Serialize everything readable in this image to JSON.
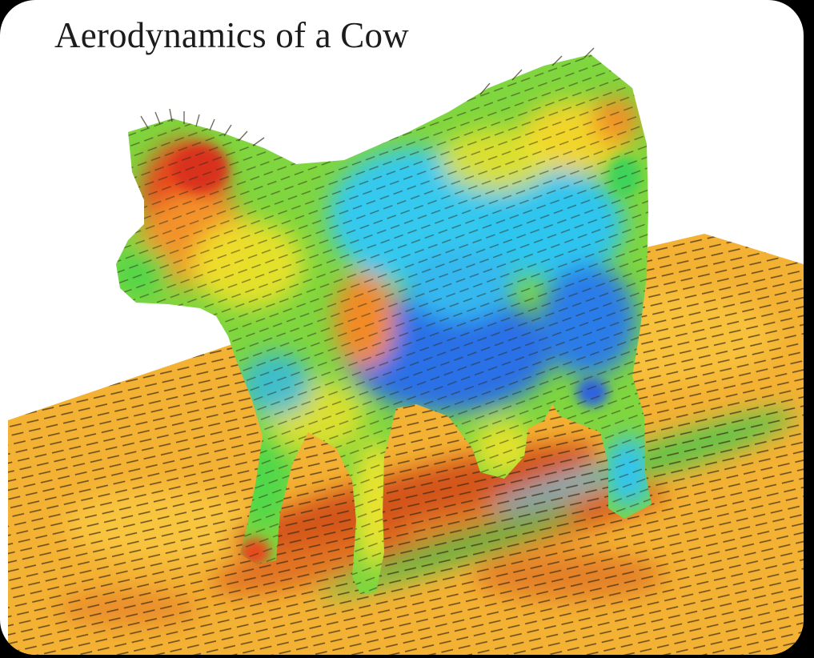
{
  "title": "Aerodynamics of a Cow",
  "colors": {
    "background": "#000000",
    "card": "#ffffff",
    "title_text": "#1c1c1c",
    "floor_base": "#f4b234",
    "floor_red": "#d9561c",
    "cow_blue": "#2a73e8",
    "cow_cyan": "#29c9f0",
    "cow_green": "#4fd64a",
    "cow_yellow": "#f2ea2c",
    "cow_orange": "#f39a2a",
    "cow_red": "#e2421e",
    "vector_lines": "#3b2a14"
  },
  "legend": "",
  "icons": [
    "cow-cfd-figure"
  ]
}
